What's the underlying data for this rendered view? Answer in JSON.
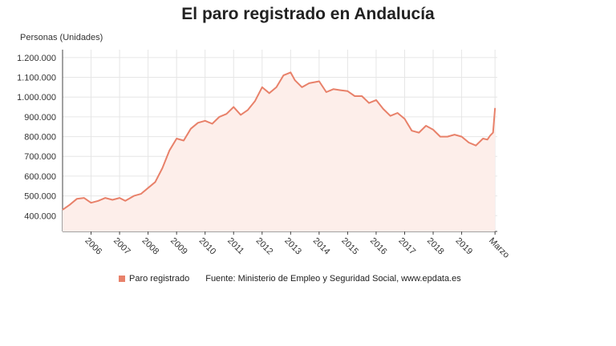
{
  "title": "El paro registrado en Andalucía",
  "legend": {
    "series_label": "Paro registrado",
    "source": "Fuente: Ministerio de Empleo y Seguridad Social, www.epdata.es"
  },
  "colors": {
    "line": "#e8816a",
    "area": "#fdeeea",
    "grid": "#e6e6e6",
    "axis": "#444444"
  },
  "chart_data": {
    "type": "area",
    "title": "El paro registrado en Andalucía",
    "ylabel": "Personas (Unidades)",
    "xlabel": "",
    "ylim": [
      320000,
      1240000
    ],
    "xlim": [
      2005.0,
      2020.25
    ],
    "grid": true,
    "legend_position": "bottom",
    "y_ticks": [
      400000,
      500000,
      600000,
      700000,
      800000,
      900000,
      1000000,
      1100000,
      1200000
    ],
    "y_tick_labels": [
      "400.000",
      "500.000",
      "600.000",
      "700.000",
      "800.000",
      "900.000",
      "1.000.000",
      "1.100.000",
      "1.200.000"
    ],
    "x_ticks": [
      2006,
      2007,
      2008,
      2009,
      2010,
      2011,
      2012,
      2013,
      2014,
      2015,
      2016,
      2017,
      2018,
      2019,
      2020.17
    ],
    "x_tick_labels": [
      "2006",
      "2007",
      "2008",
      "2009",
      "2010",
      "2011",
      "2012",
      "2013",
      "2014",
      "2015",
      "2016",
      "2017",
      "2018",
      "2019",
      "Marzo"
    ],
    "series": [
      {
        "name": "Paro registrado",
        "x": [
          2005.0,
          2005.25,
          2005.5,
          2005.75,
          2006.0,
          2006.25,
          2006.5,
          2006.75,
          2007.0,
          2007.2,
          2007.5,
          2007.75,
          2008.0,
          2008.25,
          2008.5,
          2008.75,
          2009.0,
          2009.25,
          2009.5,
          2009.75,
          2010.0,
          2010.25,
          2010.5,
          2010.75,
          2011.0,
          2011.25,
          2011.5,
          2011.75,
          2012.0,
          2012.25,
          2012.5,
          2012.75,
          2013.0,
          2013.15,
          2013.4,
          2013.65,
          2014.0,
          2014.25,
          2014.5,
          2014.75,
          2015.0,
          2015.25,
          2015.5,
          2015.75,
          2016.0,
          2016.25,
          2016.5,
          2016.75,
          2017.0,
          2017.25,
          2017.5,
          2017.75,
          2018.0,
          2018.25,
          2018.5,
          2018.75,
          2019.0,
          2019.25,
          2019.5,
          2019.75,
          2019.9,
          2020.0,
          2020.1,
          2020.17
        ],
        "values": [
          430000,
          455000,
          485000,
          490000,
          465000,
          475000,
          490000,
          480000,
          490000,
          475000,
          500000,
          510000,
          540000,
          570000,
          640000,
          730000,
          790000,
          780000,
          840000,
          870000,
          880000,
          865000,
          900000,
          915000,
          950000,
          910000,
          935000,
          980000,
          1050000,
          1020000,
          1050000,
          1110000,
          1125000,
          1085000,
          1050000,
          1070000,
          1080000,
          1025000,
          1040000,
          1035000,
          1030000,
          1005000,
          1005000,
          970000,
          985000,
          940000,
          905000,
          920000,
          890000,
          830000,
          820000,
          855000,
          835000,
          800000,
          800000,
          810000,
          800000,
          770000,
          755000,
          790000,
          785000,
          805000,
          820000,
          945000
        ]
      }
    ]
  }
}
